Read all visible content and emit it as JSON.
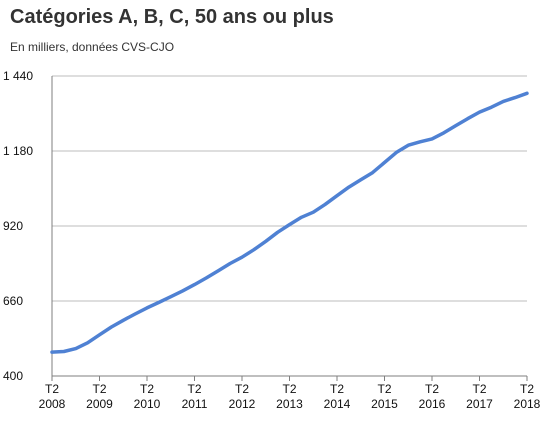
{
  "chart_data": {
    "type": "line",
    "title": "Catégories A, B, C, 50 ans ou plus",
    "subtitle": "En milliers, données CVS-CJO",
    "xlabel": "",
    "ylabel": "",
    "ylim": [
      400,
      1440
    ],
    "yticks": [
      {
        "value": 400,
        "label": "400"
      },
      {
        "value": 660,
        "label": "660"
      },
      {
        "value": 920,
        "label": "920"
      },
      {
        "value": 1180,
        "label": "1 180"
      },
      {
        "value": 1440,
        "label": "1 440"
      }
    ],
    "xlim": [
      2008.25,
      2018.25
    ],
    "xticks": [
      {
        "value": 2008.25,
        "quarter": "T2",
        "year": "2008"
      },
      {
        "value": 2009.25,
        "quarter": "T2",
        "year": "2009"
      },
      {
        "value": 2010.25,
        "quarter": "T2",
        "year": "2010"
      },
      {
        "value": 2011.25,
        "quarter": "T2",
        "year": "2011"
      },
      {
        "value": 2012.25,
        "quarter": "T2",
        "year": "2012"
      },
      {
        "value": 2013.25,
        "quarter": "T2",
        "year": "2013"
      },
      {
        "value": 2014.25,
        "quarter": "T2",
        "year": "2014"
      },
      {
        "value": 2015.25,
        "quarter": "T2",
        "year": "2015"
      },
      {
        "value": 2016.25,
        "quarter": "T2",
        "year": "2016"
      },
      {
        "value": 2017.25,
        "quarter": "T2",
        "year": "2017"
      },
      {
        "value": 2018.25,
        "quarter": "T2",
        "year": "2018"
      }
    ],
    "grid": "horizontal",
    "series": [
      {
        "color": "#4f81d3",
        "x": [
          2008.25,
          2008.5,
          2008.75,
          2009.0,
          2009.25,
          2009.5,
          2009.75,
          2010.0,
          2010.25,
          2010.5,
          2010.75,
          2011.0,
          2011.25,
          2011.5,
          2011.75,
          2012.0,
          2012.25,
          2012.5,
          2012.75,
          2013.0,
          2013.25,
          2013.5,
          2013.75,
          2014.0,
          2014.25,
          2014.5,
          2014.75,
          2015.0,
          2015.25,
          2015.5,
          2015.75,
          2016.0,
          2016.25,
          2016.5,
          2016.75,
          2017.0,
          2017.25,
          2017.5,
          2017.75,
          2018.0,
          2018.25
        ],
        "values": [
          483,
          485,
          495,
          515,
          543,
          570,
          593,
          615,
          636,
          655,
          675,
          695,
          717,
          740,
          765,
          790,
          812,
          838,
          867,
          898,
          925,
          950,
          968,
          995,
          1025,
          1055,
          1080,
          1105,
          1140,
          1175,
          1200,
          1212,
          1222,
          1243,
          1268,
          1292,
          1315,
          1332,
          1352,
          1365,
          1380
        ]
      }
    ]
  }
}
